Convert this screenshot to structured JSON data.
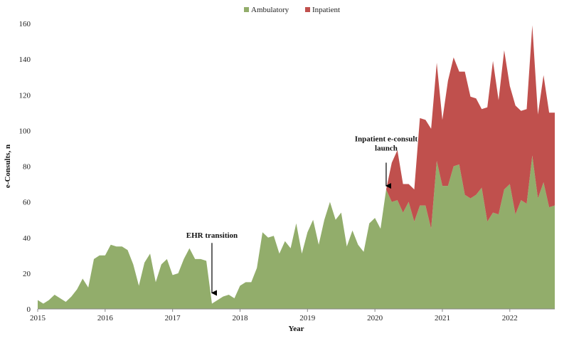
{
  "chart_data": {
    "type": "area",
    "stacked": true,
    "title": "",
    "xlabel": "Year",
    "ylabel": "e-Consults, n",
    "ylim": [
      0,
      160
    ],
    "yticks": [
      0,
      20,
      40,
      60,
      80,
      100,
      120,
      140,
      160
    ],
    "xlim": [
      "2015-01",
      "2022-09"
    ],
    "xticks": [
      "2015",
      "2016",
      "2017",
      "2018",
      "2019",
      "2020",
      "2021",
      "2022"
    ],
    "grid": false,
    "legend": "top-center",
    "x": [
      "2015-01",
      "2015-02",
      "2015-03",
      "2015-04",
      "2015-05",
      "2015-06",
      "2015-07",
      "2015-08",
      "2015-09",
      "2015-10",
      "2015-11",
      "2015-12",
      "2016-01",
      "2016-02",
      "2016-03",
      "2016-04",
      "2016-05",
      "2016-06",
      "2016-07",
      "2016-08",
      "2016-09",
      "2016-10",
      "2016-11",
      "2016-12",
      "2017-01",
      "2017-02",
      "2017-03",
      "2017-04",
      "2017-05",
      "2017-06",
      "2017-07",
      "2017-08",
      "2017-09",
      "2017-10",
      "2017-11",
      "2017-12",
      "2018-01",
      "2018-02",
      "2018-03",
      "2018-04",
      "2018-05",
      "2018-06",
      "2018-07",
      "2018-08",
      "2018-09",
      "2018-10",
      "2018-11",
      "2018-12",
      "2019-01",
      "2019-02",
      "2019-03",
      "2019-04",
      "2019-05",
      "2019-06",
      "2019-07",
      "2019-08",
      "2019-09",
      "2019-10",
      "2019-11",
      "2019-12",
      "2020-01",
      "2020-02",
      "2020-03",
      "2020-04",
      "2020-05",
      "2020-06",
      "2020-07",
      "2020-08",
      "2020-09",
      "2020-10",
      "2020-11",
      "2020-12",
      "2021-01",
      "2021-02",
      "2021-03",
      "2021-04",
      "2021-05",
      "2021-06",
      "2021-07",
      "2021-08",
      "2021-09",
      "2021-10",
      "2021-11",
      "2021-12",
      "2022-01",
      "2022-02",
      "2022-03",
      "2022-04",
      "2022-05",
      "2022-06",
      "2022-07",
      "2022-08",
      "2022-09"
    ],
    "series": [
      {
        "name": "Ambulatory",
        "color": "#92ad6b",
        "values": [
          5,
          3,
          5,
          8,
          6,
          4,
          7,
          11,
          17,
          12,
          28,
          30,
          30,
          36,
          35,
          35,
          33,
          25,
          13,
          26,
          31,
          15,
          25,
          28,
          19,
          20,
          28,
          34,
          28,
          28,
          27,
          3,
          5,
          7,
          8,
          6,
          13,
          15,
          15,
          23,
          43,
          40,
          41,
          31,
          38,
          34,
          48,
          31,
          43,
          50,
          36,
          50,
          60,
          50,
          54,
          35,
          44,
          36,
          32,
          48,
          51,
          45,
          67,
          60,
          61,
          54,
          60,
          49,
          58,
          58,
          45,
          83,
          69,
          69,
          80,
          81,
          64,
          62,
          64,
          68,
          49,
          54,
          53,
          67,
          70,
          53,
          61,
          59,
          86,
          62,
          71,
          57,
          58
        ]
      },
      {
        "name": "Inpatient",
        "color": "#c0504d",
        "values": [
          0,
          0,
          0,
          0,
          0,
          0,
          0,
          0,
          0,
          0,
          0,
          0,
          0,
          0,
          0,
          0,
          0,
          0,
          0,
          0,
          0,
          0,
          0,
          0,
          0,
          0,
          0,
          0,
          0,
          0,
          0,
          0,
          0,
          0,
          0,
          0,
          0,
          0,
          0,
          0,
          0,
          0,
          0,
          0,
          0,
          0,
          0,
          0,
          0,
          0,
          0,
          0,
          0,
          0,
          0,
          0,
          0,
          0,
          0,
          0,
          0,
          0,
          0,
          22,
          28,
          16,
          10,
          18,
          49,
          48,
          56,
          55,
          37,
          59,
          61,
          52,
          69,
          57,
          54,
          44,
          64,
          85,
          64,
          78,
          55,
          61,
          50,
          53,
          73,
          47,
          60,
          53,
          52
        ]
      }
    ],
    "annotations": [
      {
        "lines": [
          "EHR transition"
        ],
        "x": "2017-08",
        "text_y": 40,
        "arrow_from_y": 37,
        "arrow_to_y": 9
      },
      {
        "lines": [
          "Inpatient e-consult",
          "launch"
        ],
        "x": "2020-03",
        "text_y": 94,
        "arrow_from_y": 82,
        "arrow_to_y": 69
      }
    ]
  }
}
